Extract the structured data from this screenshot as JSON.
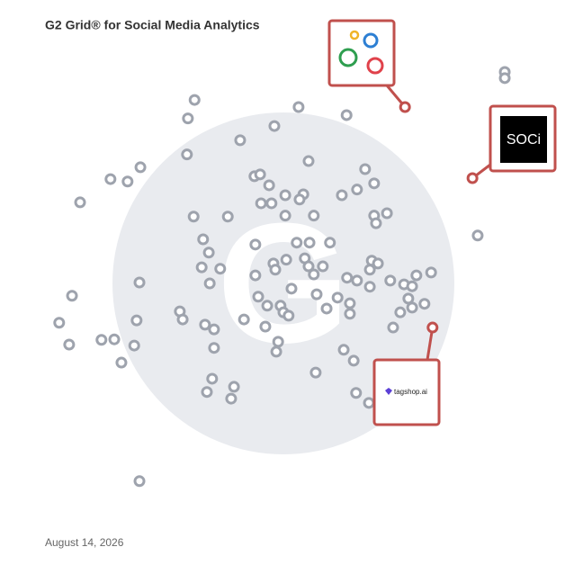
{
  "chart_data": {
    "type": "scatter",
    "title": "G2 Grid® for Social Media Analytics",
    "date": "August 14, 2026",
    "xlim": [
      0,
      100
    ],
    "ylim": [
      0,
      100
    ],
    "series": [
      {
        "color": "#9ea3ad",
        "x": [
          96.6,
          96.6,
          31.3,
          53.2,
          63.3,
          29.9,
          48.1,
          40.9,
          29.7,
          55.3,
          19.9,
          67.2,
          13.6,
          17.2,
          43.9,
          45.1,
          47.0,
          69.1,
          65.5,
          62.3,
          50.4,
          54.2,
          53.4,
          45.3,
          47.5,
          7.2,
          69.1,
          71.8,
          69.5,
          31.1,
          38.3,
          50.4,
          56.4,
          33.1,
          90.9,
          52.8,
          55.5,
          59.8,
          44.1,
          34.3,
          32.8,
          36.7,
          54.5,
          50.6,
          47.9,
          55.3,
          58.3,
          68.6,
          69.9,
          68.2,
          44.1,
          48.3,
          56.4,
          63.4,
          65.5,
          72.5,
          78.0,
          81.1,
          75.4,
          77.1,
          68.2,
          19.7,
          34.5,
          51.7,
          57.0,
          61.4,
          64.0,
          76.3,
          79.7,
          44.7,
          5.5,
          28.2,
          28.8,
          49.4,
          50.0,
          51.1,
          46.6,
          59.1,
          64.0,
          74.6,
          77.1,
          19.1,
          41.7,
          33.5,
          35.4,
          46.2,
          2.8,
          11.7,
          14.4,
          4.9,
          18.6,
          48.9,
          35.4,
          48.5,
          62.7,
          64.8,
          15.9,
          56.8,
          35.0,
          39.6,
          33.9,
          39.0,
          65.3,
          68.0,
          73.1,
          19.7
        ],
        "y": [
          94.5,
          93.2,
          88.6,
          87.1,
          85.4,
          84.7,
          83.1,
          80.1,
          77.1,
          75.7,
          74.4,
          74.0,
          71.9,
          71.4,
          72.5,
          72.9,
          70.6,
          71.0,
          69.7,
          68.5,
          68.5,
          68.7,
          67.6,
          66.8,
          66.8,
          67.0,
          64.2,
          64.7,
          62.6,
          64.0,
          64.0,
          64.2,
          64.2,
          59.2,
          60.0,
          58.5,
          58.5,
          58.5,
          58.1,
          56.4,
          53.3,
          53.0,
          55.2,
          54.9,
          54.1,
          53.5,
          53.5,
          54.7,
          54.1,
          52.8,
          51.6,
          52.8,
          51.8,
          51.1,
          50.5,
          50.5,
          51.6,
          52.2,
          49.7,
          49.3,
          49.2,
          50.1,
          49.9,
          48.8,
          47.6,
          46.9,
          45.7,
          46.7,
          45.6,
          47.1,
          47.3,
          44.0,
          42.3,
          45.2,
          43.8,
          43.1,
          45.2,
          44.6,
          43.5,
          43.8,
          44.8,
          42.1,
          42.3,
          41.2,
          40.2,
          40.8,
          41.6,
          38.0,
          38.1,
          37.0,
          36.8,
          37.6,
          36.3,
          35.5,
          35.9,
          33.6,
          33.2,
          31.1,
          29.8,
          28.1,
          27.0,
          25.6,
          26.8,
          24.7,
          40.6,
          8.2
        ]
      },
      {
        "color": "#c0504d",
        "x": [
          75.6,
          89.8,
          81.4
        ],
        "y": [
          87.1,
          72.1,
          40.6
        ],
        "logos": [
          null,
          "SOCi",
          "tagshop.ai"
        ]
      }
    ]
  }
}
